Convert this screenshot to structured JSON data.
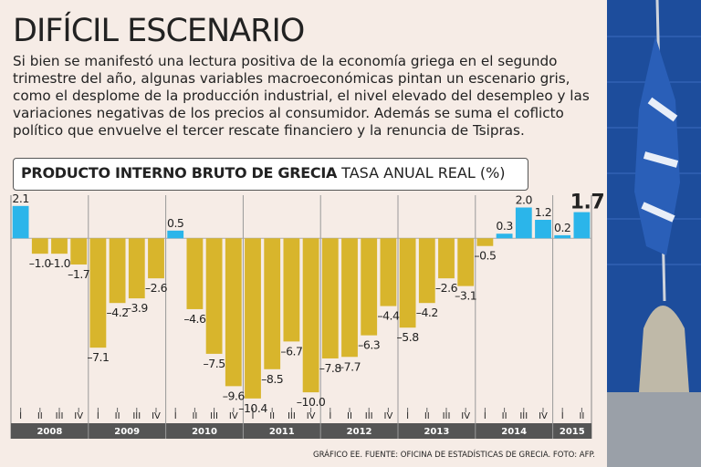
{
  "title": "DIFÍCIL ESCENARIO",
  "description": "Si bien se manifestó una lectura positiva de la economía griega en el segundo trimestre del año, algunas variables macroeconómicas pintan un escenario gris, como el desplome de la producción industrial, el nivel elevado del desempleo y las variaciones negativas de los precios al consumidor. Además se suma el coflicto político que envuelve el tercer rescate financiero y la renuncia de Tsipras.",
  "source": "GRÁFICO EE. FUENTE: OFICINA DE ESTADÍSTICAS DE GRECIA. FOTO: AFP.",
  "chart_data": {
    "type": "bar",
    "title": "PRODUCTO INTERNO BRUTO DE GRECIA",
    "subtitle": "TASA ANUAL REAL (%)",
    "categories": [
      "I",
      "II",
      "III",
      "IV",
      "I",
      "II",
      "III",
      "IV",
      "I",
      "II",
      "III",
      "IV",
      "I",
      "II",
      "III",
      "IV",
      "I",
      "II",
      "III",
      "IV",
      "I",
      "II",
      "III",
      "IV",
      "I",
      "II",
      "III",
      "IV",
      "I",
      "II"
    ],
    "years": [
      {
        "label": "2008",
        "count": 4
      },
      {
        "label": "2009",
        "count": 4
      },
      {
        "label": "2010",
        "count": 4
      },
      {
        "label": "2011",
        "count": 4
      },
      {
        "label": "2012",
        "count": 4
      },
      {
        "label": "2013",
        "count": 4
      },
      {
        "label": "2014",
        "count": 4
      },
      {
        "label": "2015",
        "count": 2
      }
    ],
    "values": [
      2.1,
      -1.0,
      -1.0,
      -1.7,
      -7.1,
      -4.2,
      -3.9,
      -2.6,
      0.5,
      -4.6,
      -7.5,
      -9.6,
      -10.4,
      -8.5,
      -6.7,
      -10.0,
      -7.8,
      -7.7,
      -6.3,
      -4.4,
      -5.8,
      -4.2,
      -2.6,
      -3.1,
      -0.5,
      0.3,
      2.0,
      1.2,
      0.2,
      1.7
    ],
    "value_labels": [
      "2.1",
      "–1.0",
      "–1.0",
      "–1.7",
      "–7.1",
      "–4.2",
      "–3.9",
      "–2.6",
      "0.5",
      "–4.6",
      "–7.5",
      "–9.6",
      "–10.4",
      "–8.5",
      "–6.7",
      "–10.0",
      "–7.8",
      "–7.7",
      "–6.3",
      "–4.4",
      "–5.8",
      "–4.2",
      "–2.6",
      "–3.1",
      "–0.5",
      "0.3",
      "2.0",
      "1.2",
      "0.2",
      "1.7"
    ],
    "positive_color": "#2bb5ea",
    "negative_color": "#d8b52c",
    "ylim": [
      -11,
      2.8
    ]
  }
}
